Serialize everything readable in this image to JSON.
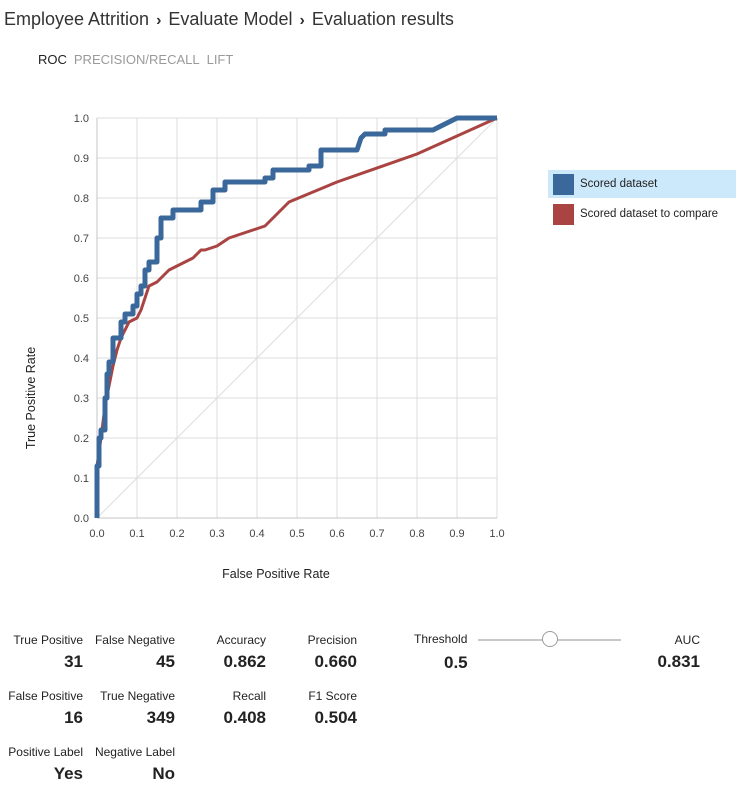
{
  "breadcrumb": [
    "Employee Attrition",
    "Evaluate Model",
    "Evaluation results"
  ],
  "tabs": [
    {
      "label": "ROC",
      "active": true
    },
    {
      "label": "PRECISION/RECALL",
      "active": false
    },
    {
      "label": "LIFT",
      "active": false
    }
  ],
  "chart_data": {
    "type": "line",
    "xlabel": "False Positive Rate",
    "ylabel": "True Positive Rate",
    "xlim": [
      0,
      1
    ],
    "ylim": [
      0,
      1
    ],
    "xticks": [
      "0.0",
      "0.1",
      "0.2",
      "0.3",
      "0.4",
      "0.5",
      "0.6",
      "0.7",
      "0.8",
      "0.9",
      "1.0"
    ],
    "yticks": [
      "0.0",
      "0.1",
      "0.2",
      "0.3",
      "0.4",
      "0.5",
      "0.6",
      "0.7",
      "0.8",
      "0.9",
      "1.0"
    ],
    "grid": true,
    "legend_position": "right",
    "series": [
      {
        "name": "Scored dataset",
        "color": "#3b689a",
        "points": [
          [
            0,
            0
          ],
          [
            0,
            0.13
          ],
          [
            0.005,
            0.13
          ],
          [
            0.005,
            0.2
          ],
          [
            0.01,
            0.2
          ],
          [
            0.01,
            0.22
          ],
          [
            0.02,
            0.22
          ],
          [
            0.02,
            0.3
          ],
          [
            0.025,
            0.3
          ],
          [
            0.025,
            0.36
          ],
          [
            0.03,
            0.36
          ],
          [
            0.03,
            0.39
          ],
          [
            0.04,
            0.39
          ],
          [
            0.04,
            0.45
          ],
          [
            0.06,
            0.45
          ],
          [
            0.06,
            0.49
          ],
          [
            0.07,
            0.49
          ],
          [
            0.07,
            0.51
          ],
          [
            0.09,
            0.51
          ],
          [
            0.09,
            0.53
          ],
          [
            0.1,
            0.53
          ],
          [
            0.1,
            0.56
          ],
          [
            0.11,
            0.56
          ],
          [
            0.11,
            0.58
          ],
          [
            0.12,
            0.58
          ],
          [
            0.12,
            0.62
          ],
          [
            0.13,
            0.62
          ],
          [
            0.13,
            0.64
          ],
          [
            0.15,
            0.64
          ],
          [
            0.15,
            0.7
          ],
          [
            0.16,
            0.7
          ],
          [
            0.16,
            0.75
          ],
          [
            0.19,
            0.75
          ],
          [
            0.19,
            0.77
          ],
          [
            0.26,
            0.77
          ],
          [
            0.26,
            0.79
          ],
          [
            0.29,
            0.79
          ],
          [
            0.29,
            0.82
          ],
          [
            0.32,
            0.82
          ],
          [
            0.32,
            0.84
          ],
          [
            0.42,
            0.84
          ],
          [
            0.42,
            0.85
          ],
          [
            0.44,
            0.85
          ],
          [
            0.44,
            0.87
          ],
          [
            0.53,
            0.87
          ],
          [
            0.53,
            0.88
          ],
          [
            0.56,
            0.88
          ],
          [
            0.56,
            0.92
          ],
          [
            0.65,
            0.92
          ],
          [
            0.66,
            0.95
          ],
          [
            0.67,
            0.96
          ],
          [
            0.72,
            0.96
          ],
          [
            0.72,
            0.97
          ],
          [
            0.84,
            0.97
          ],
          [
            0.9,
            1.0
          ],
          [
            1.0,
            1.0
          ]
        ]
      },
      {
        "name": "Scored dataset to compare",
        "color": "#a94442",
        "points": [
          [
            0,
            0
          ],
          [
            0,
            0.13
          ],
          [
            0.01,
            0.2
          ],
          [
            0.02,
            0.28
          ],
          [
            0.03,
            0.33
          ],
          [
            0.04,
            0.38
          ],
          [
            0.05,
            0.42
          ],
          [
            0.06,
            0.45
          ],
          [
            0.08,
            0.49
          ],
          [
            0.1,
            0.5
          ],
          [
            0.11,
            0.52
          ],
          [
            0.12,
            0.55
          ],
          [
            0.13,
            0.58
          ],
          [
            0.15,
            0.59
          ],
          [
            0.16,
            0.6
          ],
          [
            0.18,
            0.62
          ],
          [
            0.2,
            0.63
          ],
          [
            0.22,
            0.64
          ],
          [
            0.24,
            0.65
          ],
          [
            0.26,
            0.67
          ],
          [
            0.27,
            0.67
          ],
          [
            0.3,
            0.68
          ],
          [
            0.33,
            0.7
          ],
          [
            0.42,
            0.73
          ],
          [
            0.48,
            0.79
          ],
          [
            0.6,
            0.84
          ],
          [
            0.8,
            0.91
          ],
          [
            1.0,
            1.0
          ]
        ]
      },
      {
        "name": "",
        "color": "#dddddd",
        "points": [
          [
            0,
            0
          ],
          [
            1,
            1
          ]
        ]
      }
    ]
  },
  "legend": [
    {
      "label": "Scored dataset",
      "color": "#3b689a",
      "selected": true
    },
    {
      "label": "Scored dataset to compare",
      "color": "#a94442",
      "selected": false
    }
  ],
  "metrics": {
    "true_positive": {
      "label": "True Positive",
      "value": "31"
    },
    "false_negative": {
      "label": "False Negative",
      "value": "45"
    },
    "accuracy": {
      "label": "Accuracy",
      "value": "0.862"
    },
    "precision": {
      "label": "Precision",
      "value": "0.660"
    },
    "false_positive": {
      "label": "False Positive",
      "value": "16"
    },
    "true_negative": {
      "label": "True Negative",
      "value": "349"
    },
    "recall": {
      "label": "Recall",
      "value": "0.408"
    },
    "f1_score": {
      "label": "F1 Score",
      "value": "0.504"
    },
    "positive_label": {
      "label": "Positive Label",
      "value": "Yes"
    },
    "negative_label": {
      "label": "Negative Label",
      "value": "No"
    },
    "threshold": {
      "label": "Threshold",
      "value": "0.5",
      "slider_fraction": 0.5
    },
    "auc": {
      "label": "AUC",
      "value": "0.831"
    }
  }
}
